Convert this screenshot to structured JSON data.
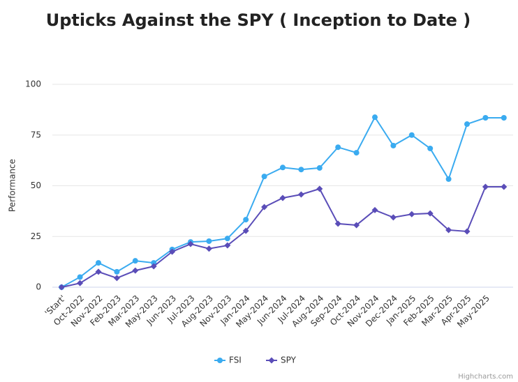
{
  "chart_data": {
    "type": "line",
    "title": "Upticks Against the SPY ( Inception to Date )",
    "y_label": "Performance",
    "categories": [
      "'Start'",
      "Oct-2022",
      "Nov-2022",
      "Feb-2023",
      "Mar-2023",
      "May-2023",
      "Jun-2023",
      "Jul-2023",
      "Aug-2023",
      "Nov-2023",
      "Jan-2024",
      "May-2024",
      "Jun-2024",
      "Jul-2024",
      "Aug-2024",
      "Sep-2024",
      "Oct-2024",
      "Nov-2024",
      "Dec-2024",
      "Jan-2025",
      "Feb-2025",
      "Mar-2025",
      "Apr-2025",
      "May-2025",
      null
    ],
    "series": [
      {
        "name": "FSI",
        "color": "#3aabf0",
        "marker": "circle",
        "values": [
          0,
          5,
          12,
          7.6,
          13,
          12,
          18.6,
          22.3,
          22.7,
          24,
          33.3,
          54.6,
          59,
          58,
          58.8,
          69,
          66.3,
          83.8,
          69.8,
          75,
          68.4,
          53.3,
          80.4,
          83.5,
          83.5
        ]
      },
      {
        "name": "SPY",
        "color": "#5a4db8",
        "marker": "diamond",
        "values": [
          0,
          2,
          7.6,
          4.5,
          8.2,
          10.3,
          17.5,
          21.3,
          19,
          20.6,
          27.8,
          39.5,
          44,
          45.7,
          48.5,
          31.3,
          30.6,
          38,
          34.4,
          36,
          36.4,
          28.2,
          27.5,
          49.5,
          49.5
        ]
      }
    ],
    "ylim": [
      0,
      100
    ],
    "yticks": [
      0,
      25,
      50,
      75,
      100
    ],
    "grid": true,
    "legend": "bottom",
    "credits": "Highcharts.com"
  }
}
